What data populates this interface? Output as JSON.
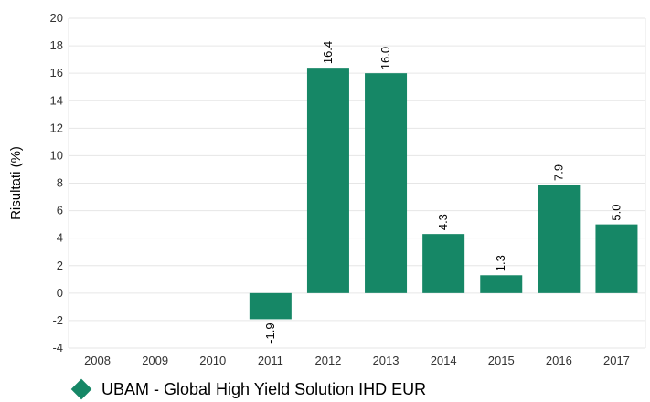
{
  "chart_data": {
    "type": "bar",
    "title": "",
    "xlabel": "",
    "ylabel": "Risultati (%)",
    "categories": [
      "2008",
      "2009",
      "2010",
      "2011",
      "2012",
      "2013",
      "2014",
      "2015",
      "2016",
      "2017"
    ],
    "series": [
      {
        "name": "UBAM - Global High Yield Solution IHD EUR",
        "values": [
          null,
          null,
          null,
          -1.9,
          16.4,
          16.0,
          4.3,
          1.3,
          7.9,
          5.0
        ],
        "labels": [
          "",
          "",
          "",
          "-1.9",
          "16.4",
          "16.0",
          "4.3",
          "1.3",
          "7.9",
          "5.0"
        ],
        "color": "#168766"
      }
    ],
    "ylim": [
      -4,
      20
    ],
    "yticks": [
      "-4",
      "-2",
      "0",
      "2",
      "4",
      "6",
      "8",
      "10",
      "12",
      "14",
      "16",
      "18",
      "20"
    ],
    "grid": true,
    "legend_position": "bottom-left"
  },
  "legend": {
    "label": "UBAM - Global High Yield Solution IHD EUR",
    "color": "#168766"
  }
}
